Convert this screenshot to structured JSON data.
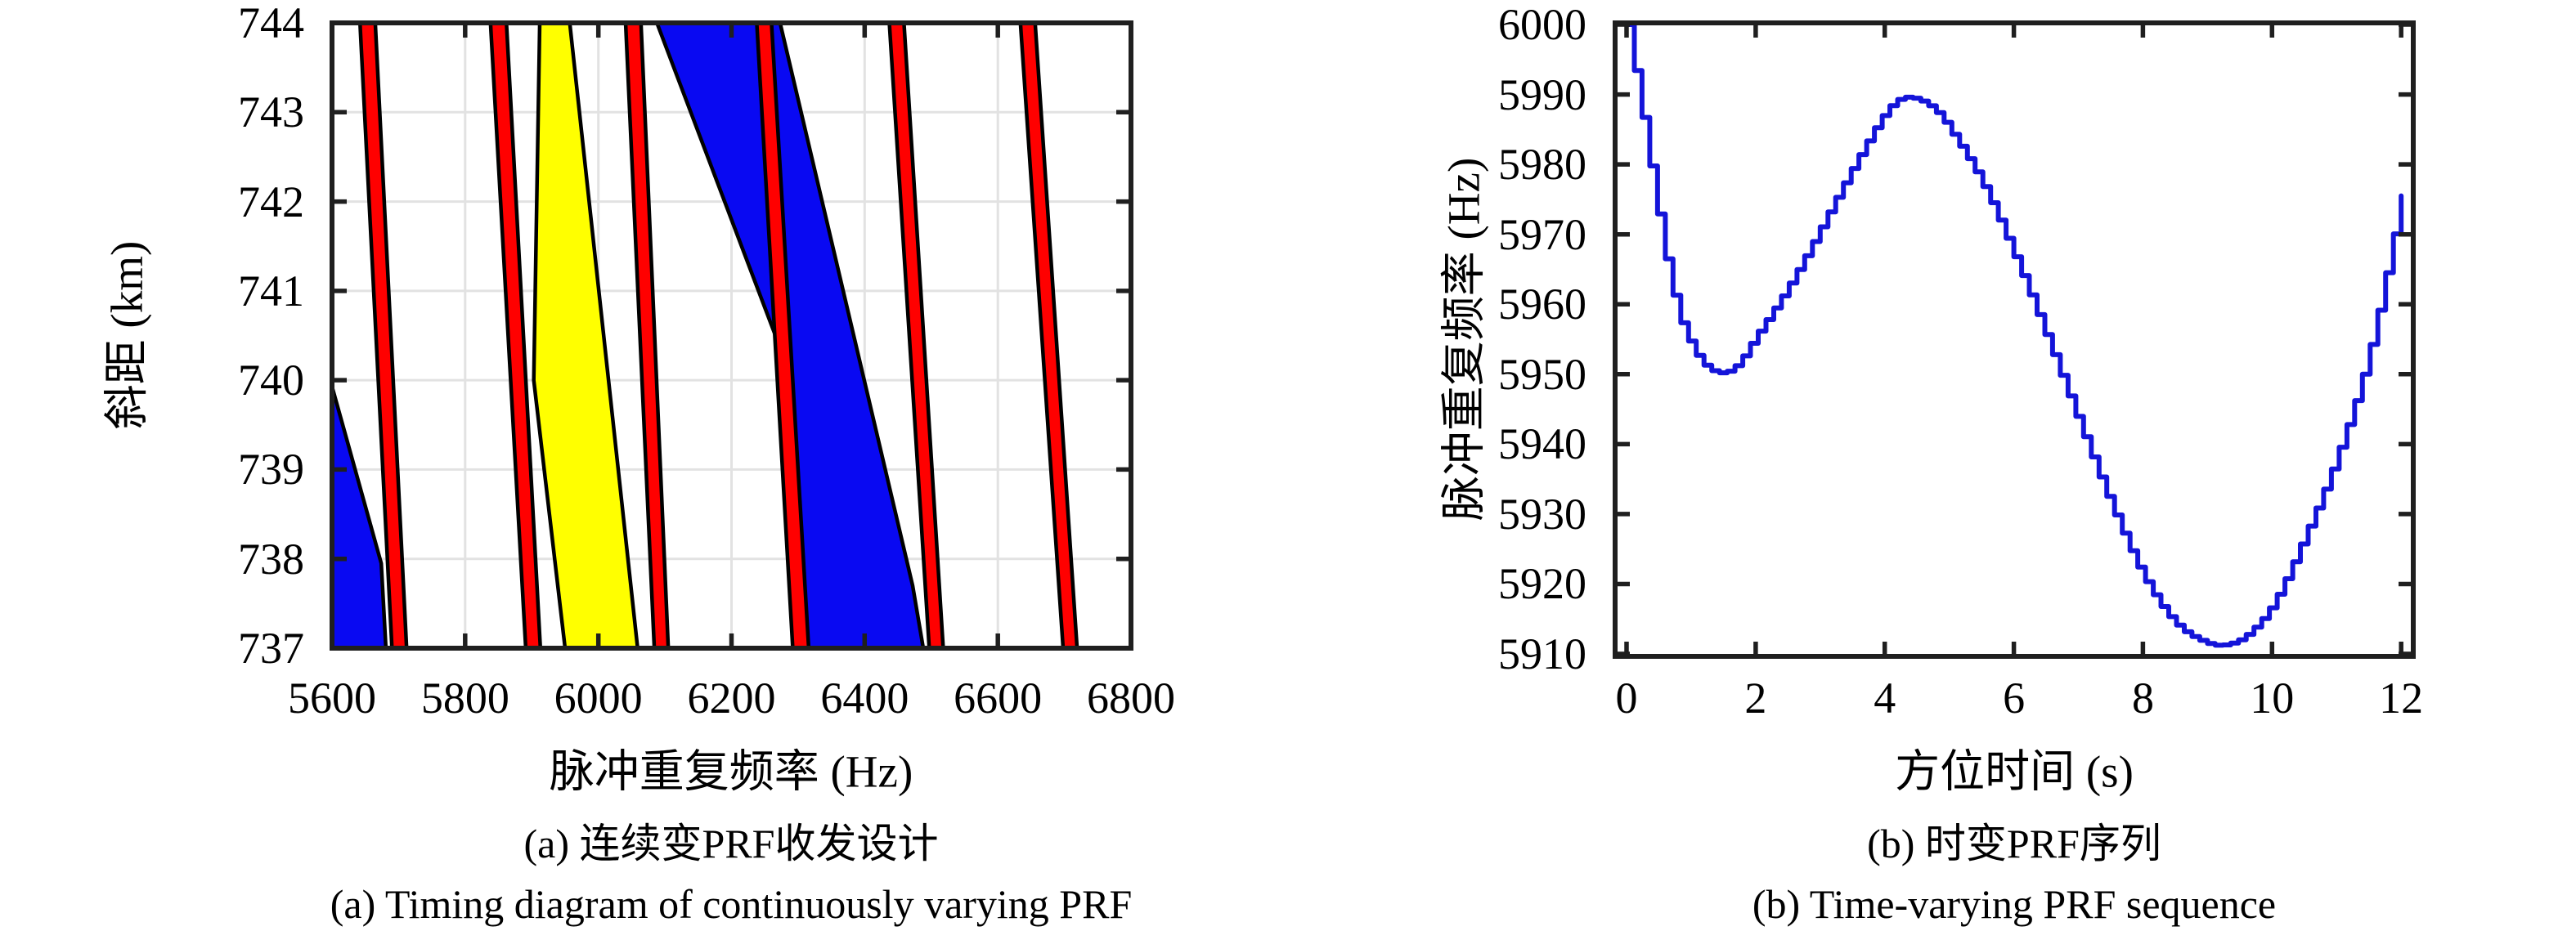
{
  "page": {
    "background": "#ffffff"
  },
  "figure_a": {
    "caption_zh": "(a) 连续变PRF收发设计",
    "caption_en": "(a) Timing diagram of continuously varying PRF",
    "xlabel": "脉冲重复频率 (Hz)",
    "ylabel": "斜距 (km)"
  },
  "figure_b": {
    "caption_zh": "(b) 时变PRF序列",
    "caption_en": "(b) Time-varying PRF sequence",
    "xlabel": "方位时间 (s)",
    "ylabel": "脉冲重复频率 (Hz)"
  },
  "chart_data": [
    {
      "type": "area",
      "panel": "a",
      "title": "(a) 连续变PRF收发设计 / Timing diagram of continuously varying PRF",
      "xlabel": "脉冲重复频率 (Hz)",
      "ylabel": "斜距 (km)",
      "xlim": [
        5600,
        6800
      ],
      "ylim": [
        737,
        744
      ],
      "xticks": [
        5600,
        5800,
        6000,
        6200,
        6400,
        6600,
        6800
      ],
      "yticks": [
        737,
        738,
        739,
        740,
        741,
        742,
        743,
        744
      ],
      "grid": true,
      "colors": {
        "stripe": "#ff0000",
        "blue": "#0909f2",
        "yellow": "#ffff00",
        "outline": "#000000",
        "grid": "#e2e2e2",
        "axis": "#1f1f1f"
      },
      "transmit_stripes_prf_at_744_and_737": [
        {
          "x_top": [
            5642,
            5665
          ],
          "x_bottom": [
            5690,
            5712
          ]
        },
        {
          "x_top": [
            5838,
            5862
          ],
          "x_bottom": [
            5891,
            5913
          ]
        },
        {
          "x_top": [
            6041,
            6064
          ],
          "x_bottom": [
            6084,
            6105
          ]
        },
        {
          "x_top": [
            6238,
            6260
          ],
          "x_bottom": [
            6292,
            6316
          ]
        },
        {
          "x_top": [
            6437,
            6459
          ],
          "x_bottom": [
            6497,
            6518
          ]
        },
        {
          "x_top": [
            6634,
            6656
          ],
          "x_bottom": [
            6698,
            6719
          ]
        }
      ],
      "regions": [
        {
          "color": "blue",
          "points": [
            [
              5600,
              739.93
            ],
            [
              5674,
              737.95
            ],
            [
              5681,
              737
            ],
            [
              5600,
              737
            ]
          ]
        },
        {
          "color": "yellow",
          "points": [
            [
              5912,
              744
            ],
            [
              5957,
              744
            ],
            [
              6059,
              737
            ],
            [
              5950,
              737
            ],
            [
              5903,
              740.0
            ]
          ]
        },
        {
          "color": "blue",
          "points": [
            [
              6088,
              744
            ],
            [
              6273,
              744
            ],
            [
              6472,
              737.7
            ],
            [
              6488,
              737
            ],
            [
              6294,
              737
            ],
            [
              6269,
              740.44
            ]
          ]
        }
      ]
    },
    {
      "type": "line",
      "panel": "b",
      "style": "staircase",
      "title": "(b) 时变PRF序列 / Time-varying PRF sequence",
      "xlabel": "方位时间 (s)",
      "ylabel": "脉冲重复频率 (Hz)",
      "xlim": [
        0,
        12
      ],
      "ylim": [
        5910,
        6000
      ],
      "xticks": [
        0,
        2,
        4,
        6,
        8,
        10,
        12
      ],
      "yticks": [
        5910,
        5920,
        5930,
        5940,
        5950,
        5960,
        5970,
        5980,
        5990,
        6000
      ],
      "grid": false,
      "line_color": "#1414d9",
      "step_seconds": 0.12,
      "anchors_t": [
        0,
        0.2,
        0.4,
        0.6,
        0.8,
        1.0,
        1.2,
        1.45,
        1.7,
        2.0,
        2.4,
        2.8,
        3.2,
        3.6,
        4.0,
        4.25,
        4.55,
        4.8,
        5.0,
        5.5,
        6.0,
        6.5,
        7.0,
        7.5,
        8.0,
        8.5,
        9.0,
        9.3,
        9.6,
        10.0,
        10.5,
        11.0,
        11.5,
        12.0
      ],
      "anchors_prf": [
        6000,
        5989,
        5977.5,
        5966.5,
        5958.5,
        5954,
        5951.3,
        5950.2,
        5951.4,
        5955.6,
        5961.2,
        5967.6,
        5974.6,
        5981.4,
        5987.5,
        5989.5,
        5989.1,
        5987.4,
        5984.9,
        5977.2,
        5966.8,
        5955.2,
        5943,
        5931.2,
        5921,
        5914.3,
        5911.5,
        5911.4,
        5912.8,
        5917.2,
        5927,
        5938.5,
        5953.5,
        5975.5
      ],
      "key_points": {
        "start": [
          0,
          6000
        ],
        "first_min": [
          1.45,
          5950.2
        ],
        "local_max": [
          4.25,
          5989.5
        ],
        "global_min": [
          9.1,
          5911.4
        ],
        "end": [
          12,
          5975.5
        ]
      }
    }
  ]
}
